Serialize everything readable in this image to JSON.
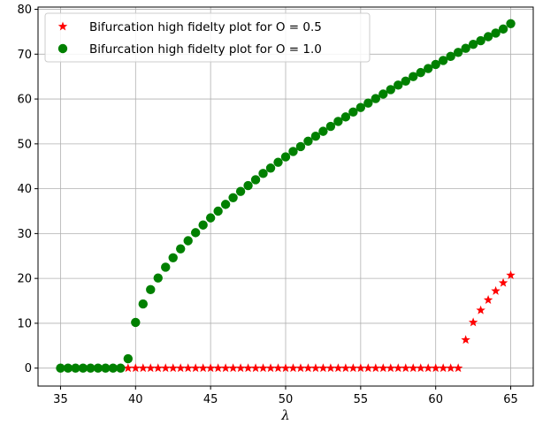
{
  "chart_data": {
    "type": "scatter",
    "xlabel": "λ",
    "ylabel": "",
    "xlim": [
      33.5,
      66.5
    ],
    "ylim": [
      -4,
      80.5
    ],
    "xticks": [
      35,
      40,
      45,
      50,
      55,
      60,
      65
    ],
    "yticks": [
      0,
      10,
      20,
      30,
      40,
      50,
      60,
      70,
      80
    ],
    "grid": true,
    "legend_position": "top-left",
    "series": [
      {
        "name": "Bifurcation high fidelty plot for O = 0.5",
        "marker": "star",
        "color": "#ff0000",
        "x": [
          39.5,
          40.0,
          40.5,
          41.0,
          41.5,
          42.0,
          42.5,
          43.0,
          43.5,
          44.0,
          44.5,
          45.0,
          45.5,
          46.0,
          46.5,
          47.0,
          47.5,
          48.0,
          48.5,
          49.0,
          49.5,
          50.0,
          50.5,
          51.0,
          51.5,
          52.0,
          52.5,
          53.0,
          53.5,
          54.0,
          54.5,
          55.0,
          55.5,
          56.0,
          56.5,
          57.0,
          57.5,
          58.0,
          58.5,
          59.0,
          59.5,
          60.0,
          60.5,
          61.0,
          61.5,
          62.0,
          62.5,
          63.0,
          63.5,
          64.0,
          64.5,
          65.0
        ],
        "y": [
          0,
          0,
          0,
          0,
          0,
          0,
          0,
          0,
          0,
          0,
          0,
          0,
          0,
          0,
          0,
          0,
          0,
          0,
          0,
          0,
          0,
          0,
          0,
          0,
          0,
          0,
          0,
          0,
          0,
          0,
          0,
          0,
          0,
          0,
          0,
          0,
          0,
          0,
          0,
          0,
          0,
          0,
          0,
          0,
          0,
          6.3,
          10.2,
          12.9,
          15.2,
          17.2,
          19.0,
          20.7
        ]
      },
      {
        "name": "Bifurcation high fidelty plot for O = 1.0",
        "marker": "circle",
        "color": "#008000",
        "x": [
          35.0,
          35.5,
          36.0,
          36.5,
          37.0,
          37.5,
          38.0,
          38.5,
          39.0,
          39.5,
          40.0,
          40.5,
          41.0,
          41.5,
          42.0,
          42.5,
          43.0,
          43.5,
          44.0,
          44.5,
          45.0,
          45.5,
          46.0,
          46.5,
          47.0,
          47.5,
          48.0,
          48.5,
          49.0,
          49.5,
          50.0,
          50.5,
          51.0,
          51.5,
          52.0,
          52.5,
          53.0,
          53.5,
          54.0,
          54.5,
          55.0,
          55.5,
          56.0,
          56.5,
          57.0,
          57.5,
          58.0,
          58.5,
          59.0,
          59.5,
          60.0,
          60.5,
          61.0,
          61.5,
          62.0,
          62.5,
          63.0,
          63.5,
          64.0,
          64.5,
          65.0
        ],
        "y": [
          0,
          0,
          0,
          0,
          0,
          0,
          0,
          0,
          0,
          2.1,
          10.2,
          14.3,
          17.5,
          20.1,
          22.5,
          24.6,
          26.6,
          28.4,
          30.2,
          31.9,
          33.5,
          35.0,
          36.5,
          38.0,
          39.4,
          40.7,
          42.0,
          43.4,
          44.6,
          45.9,
          47.1,
          48.3,
          49.4,
          50.6,
          51.7,
          52.8,
          53.9,
          55.0,
          56.0,
          57.1,
          58.1,
          59.1,
          60.1,
          61.1,
          62.1,
          63.1,
          64.0,
          65.0,
          65.9,
          66.8,
          67.7,
          68.6,
          69.5,
          70.4,
          71.3,
          72.2,
          73.0,
          73.9,
          74.7,
          75.6,
          76.8
        ]
      }
    ]
  }
}
